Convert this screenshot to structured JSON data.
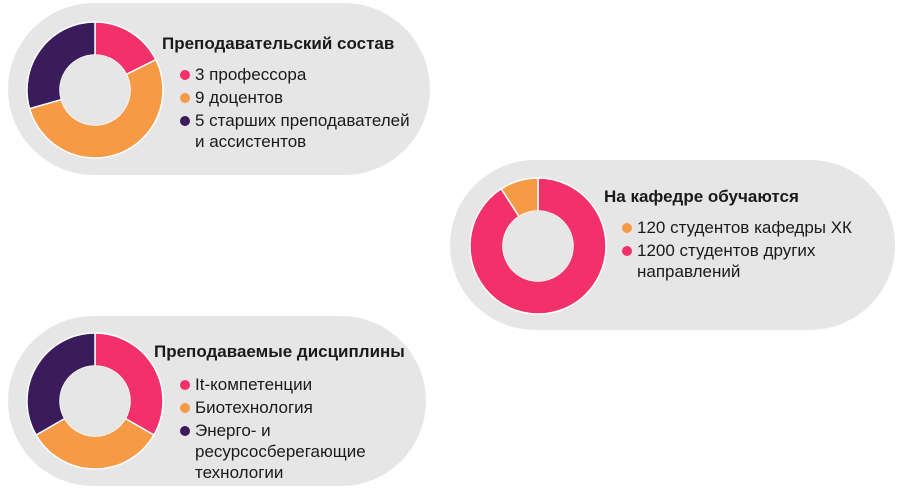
{
  "colors": {
    "card_bg": "#e6e6e6",
    "hole": "#e6e6e6",
    "pink": "#f2306a",
    "orange": "#f79a46",
    "purple": "#3a1b5c"
  },
  "cards": [
    {
      "title": "Преподавательский состав",
      "legend": [
        {
          "text": "3 профессора",
          "color": "#f2306a"
        },
        {
          "text": "9 доцентов",
          "color": "#f79a46"
        },
        {
          "text": "5 старших преподавателей\nи ассистентов",
          "color": "#3a1b5c"
        }
      ]
    },
    {
      "title": "На кафедре обучаются",
      "legend": [
        {
          "text": "120 студентов кафедры ХК",
          "color": "#f79a46"
        },
        {
          "text": "1200 студентов других\nнаправлений",
          "color": "#f2306a"
        }
      ]
    },
    {
      "title": "Преподаваемые дисциплины",
      "legend": [
        {
          "text": "It-компетенции",
          "color": "#f2306a"
        },
        {
          "text": "Биотехнология",
          "color": "#f79a46"
        },
        {
          "text": "Энерго- и\nресурсосберегающие\nтехнологии",
          "color": "#3a1b5c"
        }
      ]
    }
  ],
  "chart_data": [
    {
      "type": "pie",
      "title": "Преподавательский состав",
      "categories": [
        "3 профессора",
        "9 доцентов",
        "5 старших преподавателей и ассистентов"
      ],
      "values": [
        3,
        9,
        5
      ],
      "colors": [
        "#f2306a",
        "#f79a46",
        "#3a1b5c"
      ]
    },
    {
      "type": "pie",
      "title": "На кафедре обучаются",
      "categories": [
        "1200 студентов других направлений",
        "120 студентов кафедры ХК"
      ],
      "values": [
        1200,
        120
      ],
      "colors": [
        "#f2306a",
        "#f79a46"
      ]
    },
    {
      "type": "pie",
      "title": "Преподаваемые дисциплины",
      "categories": [
        "It-компетенции",
        "Биотехнология",
        "Энерго- и ресурсосберегающие технологии"
      ],
      "values": [
        1,
        1,
        1
      ],
      "colors": [
        "#f2306a",
        "#f79a46",
        "#3a1b5c"
      ]
    }
  ]
}
